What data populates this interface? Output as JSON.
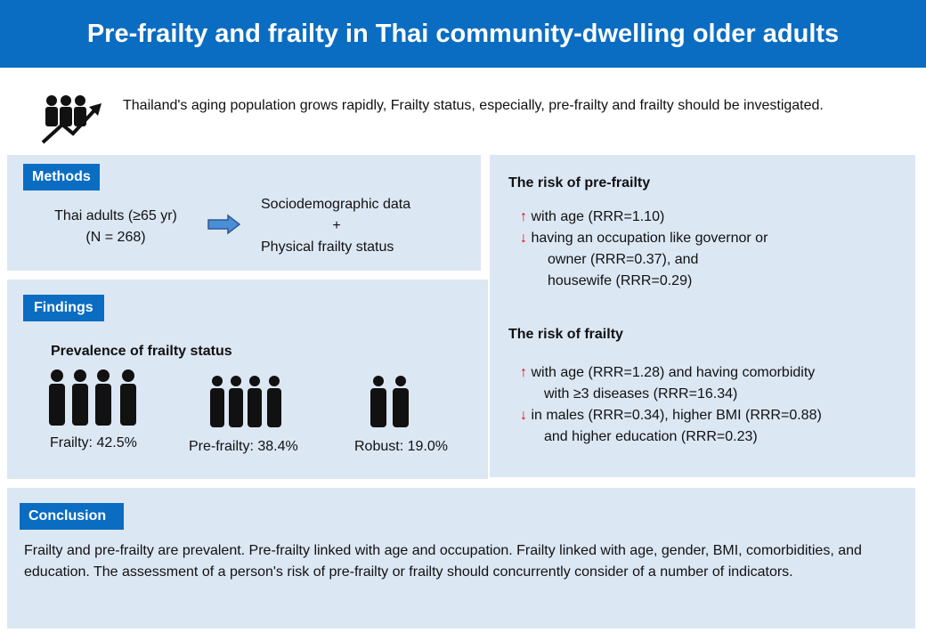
{
  "header": {
    "title": "Pre-frailty and frailty in Thai community-dwelling older adults"
  },
  "intro": {
    "text": "Thailand's aging population grows rapidly, Frailty status, especially, pre-frailty and frailty should be investigated."
  },
  "methods": {
    "label": "Methods",
    "population": [
      "Thai adults (≥65 yr)",
      "(N = 268)"
    ],
    "measures": [
      "Sociodemographic data",
      "+",
      "Physical frailty status"
    ]
  },
  "findings": {
    "label": "Findings",
    "heading": "Prevalence of frailty status",
    "groups": [
      "Frailty: 42.5%",
      "Pre-frailty: 38.4%",
      "Robust: 19.0%"
    ]
  },
  "results": [
    {
      "heading": "The risk of pre-frailty",
      "items": [
        {
          "arrow": "↑",
          "lines": [
            "with age (RRR=1.10)"
          ]
        },
        {
          "arrow": "↓",
          "lines": [
            "having an occupation like governor or",
            "owner (RRR=0.37), and",
            "housewife (RRR=0.29)"
          ]
        }
      ]
    },
    {
      "heading": "The risk of frailty",
      "items": [
        {
          "arrow": "↑",
          "lines": [
            "with age (RRR=1.28) and having comorbidity",
            "with ≥3 diseases (RRR=16.34)"
          ]
        },
        {
          "arrow": "↓",
          "lines": [
            "in males (RRR=0.34), higher BMI (RRR=0.88)",
            "and higher education (RRR=0.23)"
          ]
        }
      ]
    }
  ],
  "conclusion": {
    "label": "Conclusion",
    "text": "Frailty and pre-frailty are prevalent. Pre-frailty linked with age and occupation. Frailty linked with age, gender, BMI, comorbidities, and education. The assessment of a person's risk of pre-frailty or frailty should concurrently consider of a number of indicators."
  }
}
